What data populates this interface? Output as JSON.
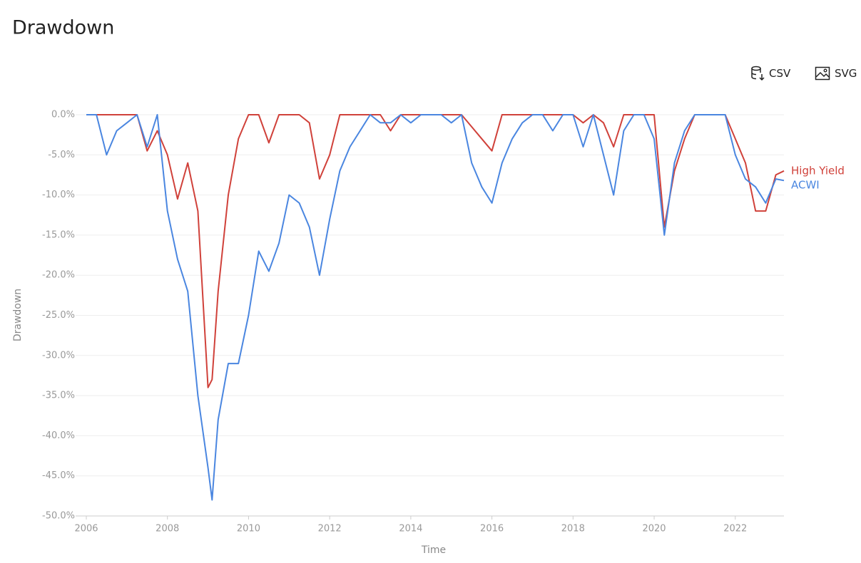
{
  "buttons": [
    "CSV",
    "SVG"
  ],
  "chart_data": {
    "type": "line",
    "title": "Drawdown",
    "x_label": "Time",
    "y_label": "Drawdown",
    "x": [
      2006.0,
      2006.25,
      2006.5,
      2006.75,
      2007.0,
      2007.25,
      2007.5,
      2007.75,
      2008.0,
      2008.25,
      2008.5,
      2008.75,
      2009.0,
      2009.1,
      2009.25,
      2009.5,
      2009.75,
      2010.0,
      2010.25,
      2010.5,
      2010.75,
      2011.0,
      2011.25,
      2011.5,
      2011.75,
      2012.0,
      2012.25,
      2012.5,
      2012.75,
      2013.0,
      2013.25,
      2013.5,
      2013.75,
      2014.0,
      2014.25,
      2014.5,
      2014.75,
      2015.0,
      2015.25,
      2015.5,
      2015.75,
      2016.0,
      2016.25,
      2016.5,
      2016.75,
      2017.0,
      2017.25,
      2017.5,
      2017.75,
      2018.0,
      2018.25,
      2018.5,
      2018.75,
      2019.0,
      2019.25,
      2019.5,
      2019.75,
      2020.0,
      2020.25,
      2020.5,
      2020.75,
      2021.0,
      2021.25,
      2021.5,
      2021.75,
      2022.0,
      2022.25,
      2022.5,
      2022.75,
      2023.0,
      2023.2
    ],
    "series": [
      {
        "name": "High Yield",
        "color": "#d0413a",
        "values": [
          0,
          0,
          0,
          0,
          0,
          0,
          -4.5,
          -2,
          -5,
          -10.5,
          -6,
          -12,
          -34,
          -33,
          -22,
          -10,
          -3,
          0,
          0,
          -3.5,
          0,
          0,
          0,
          -1,
          -8,
          -5,
          0,
          0,
          0,
          0,
          0,
          -2,
          0,
          0,
          0,
          0,
          0,
          0,
          0,
          -1.5,
          -3,
          -4.5,
          0,
          0,
          0,
          0,
          0,
          0,
          0,
          0,
          -1,
          0,
          -1,
          -4,
          0,
          0,
          0,
          0,
          -14,
          -7,
          -3,
          0,
          0,
          0,
          0,
          -3,
          -6,
          -12,
          -12,
          -7.5,
          -7
        ]
      },
      {
        "name": "ACWI",
        "color": "#4a86e0",
        "values": [
          0,
          0,
          -5,
          -2,
          -1,
          0,
          -4,
          0,
          -12,
          -18,
          -22,
          -35,
          -44,
          -48,
          -38,
          -31,
          -31,
          -25,
          -17,
          -19.5,
          -16,
          -10,
          -11,
          -14,
          -20,
          -13,
          -7,
          -4,
          -2,
          0,
          -1,
          -1,
          0,
          -1,
          0,
          0,
          0,
          -1,
          0,
          -6,
          -9,
          -11,
          -6,
          -3,
          -1,
          0,
          0,
          -2,
          0,
          0,
          -4,
          0,
          -5,
          -10,
          -2,
          0,
          0,
          -3,
          -15,
          -6,
          -2,
          0,
          0,
          0,
          0,
          -5,
          -8,
          -9,
          -11,
          -8,
          -8.2
        ]
      }
    ],
    "xlim": [
      2006,
      2023.2
    ],
    "xticks": [
      2006,
      2008,
      2010,
      2012,
      2014,
      2016,
      2018,
      2020,
      2022
    ],
    "ylim": [
      -50,
      0
    ],
    "yticks": [
      {
        "value": 0,
        "label": "0.0%"
      },
      {
        "value": -5,
        "label": "-5.0%"
      },
      {
        "value": -10,
        "label": "-10.0%"
      },
      {
        "value": -15,
        "label": "-15.0%"
      },
      {
        "value": -20,
        "label": "-20.0%"
      },
      {
        "value": -25,
        "label": "-25.0%"
      },
      {
        "value": -30,
        "label": "-30.0%"
      },
      {
        "value": -35,
        "label": "-35.0%"
      },
      {
        "value": -40,
        "label": "-40.0%"
      },
      {
        "value": -45,
        "label": "-45.0%"
      },
      {
        "value": -50,
        "label": "-50.0%"
      }
    ],
    "grid": true,
    "legend": "right-end"
  }
}
